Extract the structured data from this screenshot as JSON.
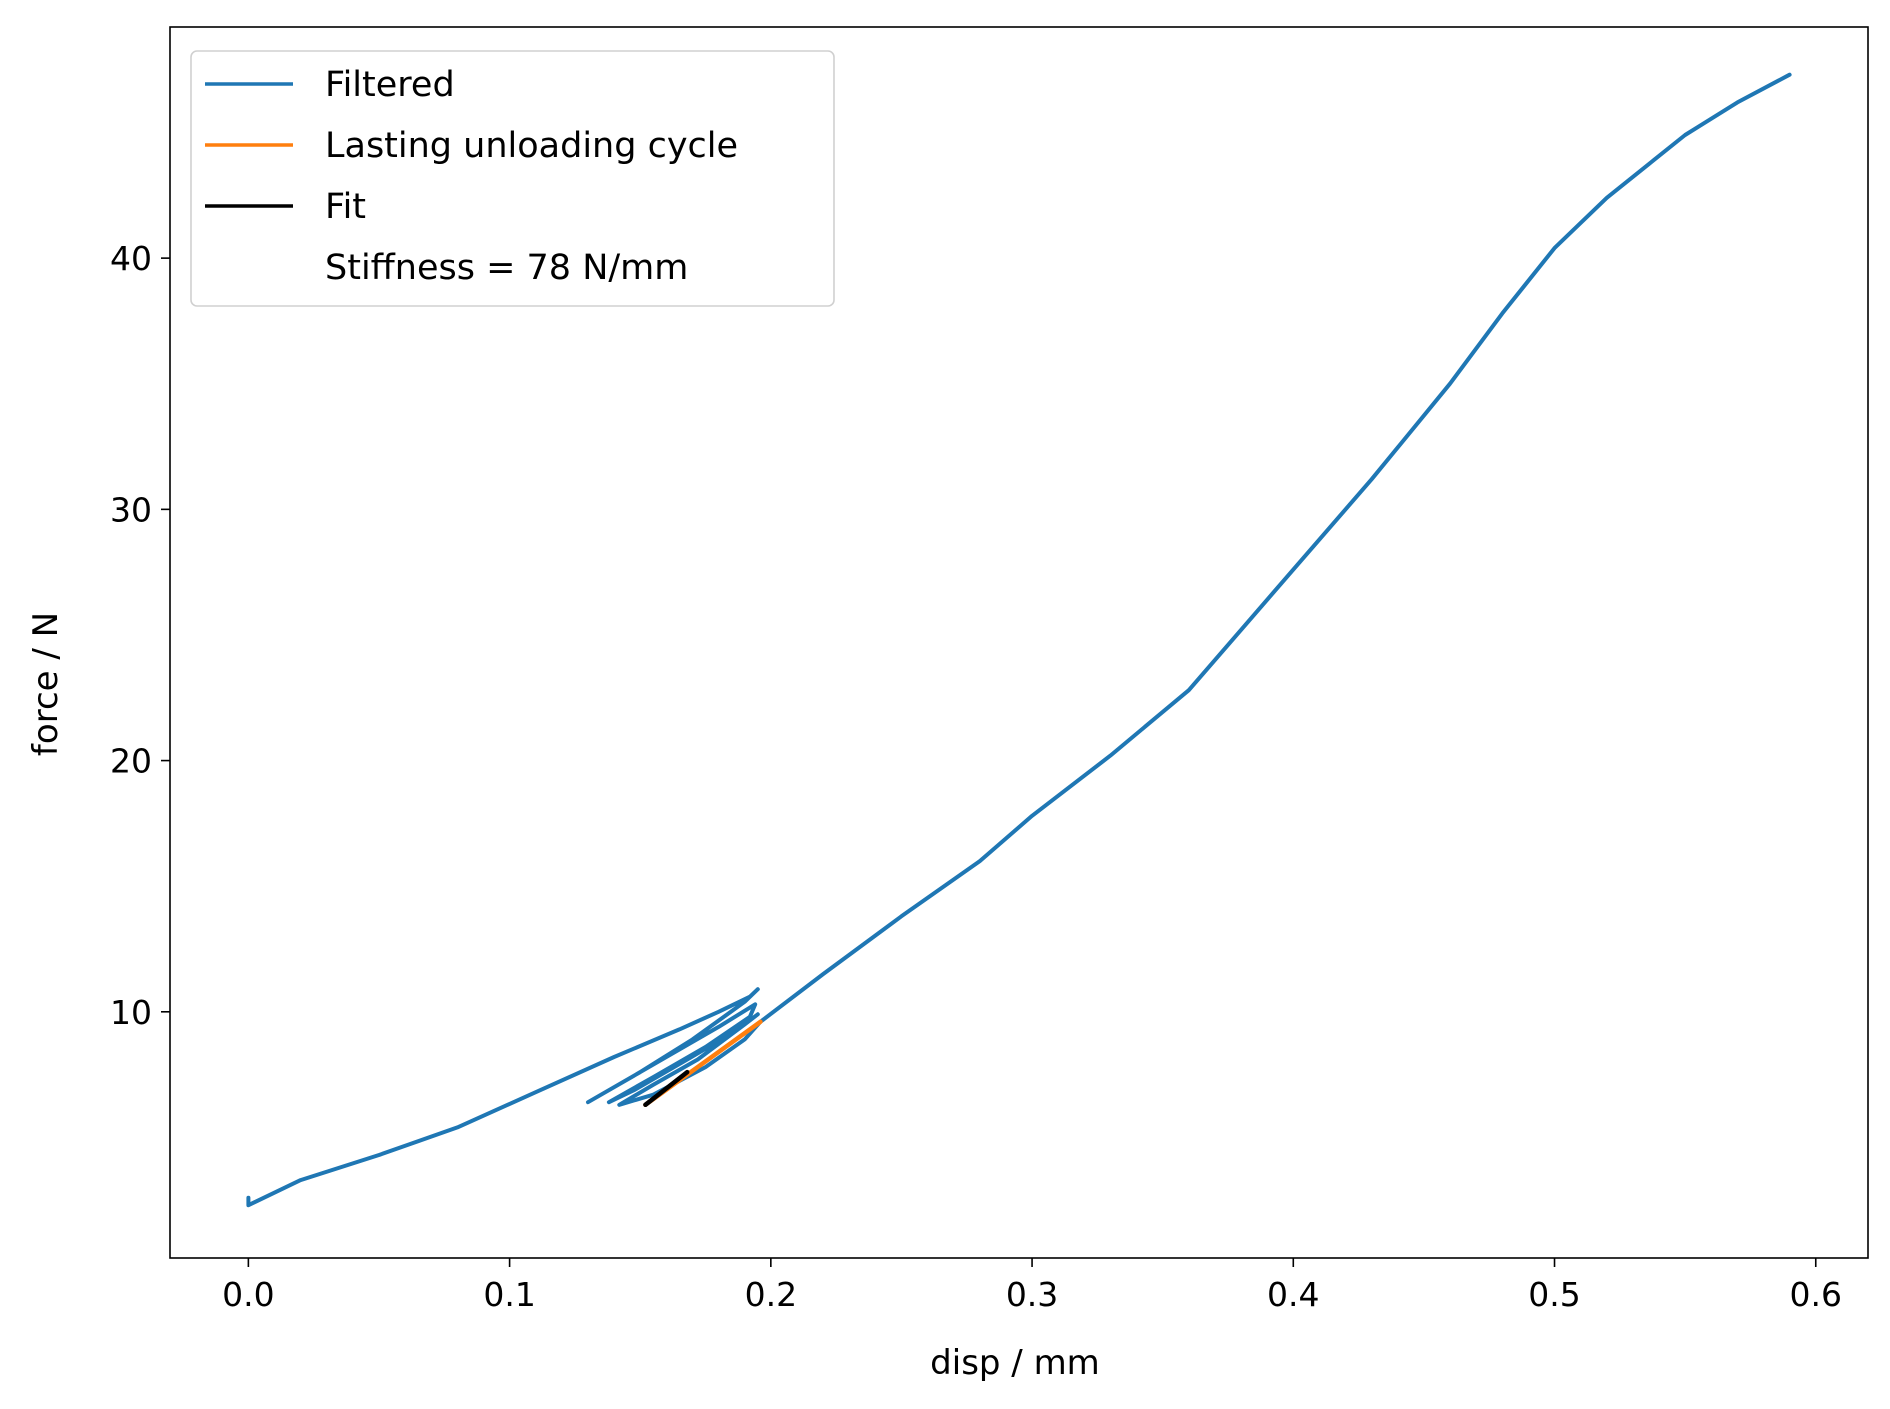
{
  "chart_data": {
    "type": "line",
    "xlabel": "disp / mm",
    "ylabel": "force / N",
    "xlim": [
      -0.03,
      0.62
    ],
    "ylim": [
      0.2,
      49.2
    ],
    "xticks": [
      0.0,
      0.1,
      0.2,
      0.3,
      0.4,
      0.5,
      0.6
    ],
    "xtick_labels": [
      "0.0",
      "0.1",
      "0.2",
      "0.3",
      "0.4",
      "0.5",
      "0.6"
    ],
    "yticks": [
      10,
      20,
      30,
      40
    ],
    "ytick_labels": [
      "10",
      "20",
      "30",
      "40"
    ],
    "grid": false,
    "legend_position": "top-left",
    "legend_note": "Stiffness = 78 N/mm",
    "series": [
      {
        "name": "Filtered",
        "color": "#1f77b4",
        "x": [
          0.0,
          0.0,
          0.02,
          0.05,
          0.08,
          0.11,
          0.14,
          0.165,
          0.18,
          0.192,
          0.195,
          0.19,
          0.17,
          0.15,
          0.13,
          0.14,
          0.16,
          0.18,
          0.194,
          0.192,
          0.175,
          0.155,
          0.138,
          0.148,
          0.168,
          0.186,
          0.195,
          0.19,
          0.172,
          0.155,
          0.142,
          0.155,
          0.175,
          0.19,
          0.196,
          0.22,
          0.25,
          0.28,
          0.3,
          0.33,
          0.36,
          0.4,
          0.43,
          0.46,
          0.48,
          0.5,
          0.52,
          0.55,
          0.57,
          0.59
        ],
        "y": [
          2.6,
          2.3,
          3.3,
          4.3,
          5.4,
          6.8,
          8.2,
          9.3,
          10.0,
          10.6,
          10.9,
          10.4,
          8.9,
          7.6,
          6.4,
          7.0,
          8.2,
          9.4,
          10.3,
          9.8,
          8.6,
          7.4,
          6.4,
          6.9,
          8.1,
          9.2,
          9.9,
          9.5,
          8.1,
          7.1,
          6.3,
          6.7,
          7.8,
          8.9,
          9.6,
          11.5,
          13.8,
          16.0,
          17.8,
          20.2,
          22.8,
          27.6,
          31.2,
          35.0,
          37.8,
          40.4,
          42.4,
          44.9,
          46.2,
          47.3
        ]
      },
      {
        "name": "Lasting unloading cycle",
        "color": "#ff7f0e",
        "x": [
          0.196,
          0.152
        ],
        "y": [
          9.6,
          6.3
        ]
      },
      {
        "name": "Fit",
        "color": "#000000",
        "x": [
          0.152,
          0.168
        ],
        "y": [
          6.3,
          7.6
        ]
      }
    ]
  }
}
